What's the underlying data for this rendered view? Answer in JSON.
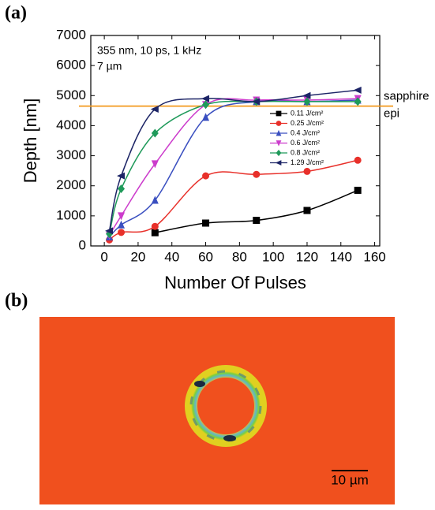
{
  "panel_labels": [
    "(a)",
    "(b)"
  ],
  "chart_data": {
    "type": "line",
    "x_label": "Number Of Pulses",
    "y_label": "Depth [nm]",
    "annotations": [
      "355 nm, 10 ps, 1 kHz",
      "7 µm"
    ],
    "x": [
      3,
      10,
      30,
      60,
      90,
      120,
      150
    ],
    "series": [
      {
        "name": "0.11 J/cm²",
        "color": "#000000",
        "marker": "square",
        "values": [
          null,
          null,
          440,
          760,
          850,
          1180,
          1850
        ]
      },
      {
        "name": "0.25 J/cm²",
        "color": "#e8302a",
        "marker": "circle",
        "values": [
          200,
          450,
          650,
          2330,
          2380,
          2480,
          2850
        ]
      },
      {
        "name": "0.4 J/cm²",
        "color": "#3a4fc0",
        "marker": "triangle-up",
        "values": [
          300,
          700,
          1520,
          4280,
          4800,
          4800,
          4850
        ]
      },
      {
        "name": "0.6 J/cm²",
        "color": "#cc3ccc",
        "marker": "triangle-down",
        "values": [
          350,
          1000,
          2730,
          4700,
          4850,
          4850,
          4900
        ]
      },
      {
        "name": "0.8 J/cm²",
        "color": "#1f9a5a",
        "marker": "diamond",
        "values": [
          400,
          1900,
          3750,
          4700,
          4800,
          4800,
          4800
        ]
      },
      {
        "name": "1.29 J/cm²",
        "color": "#1c2466",
        "marker": "triangle-left",
        "values": [
          500,
          2330,
          4550,
          4900,
          4800,
          5000,
          5180
        ]
      }
    ],
    "reference_line": {
      "value": 4650,
      "color": "#f39a1e",
      "labels": [
        "sapphire",
        "epi"
      ]
    },
    "xlim": [
      -8,
      163
    ],
    "xticks": [
      0,
      20,
      40,
      60,
      80,
      100,
      120,
      140,
      160
    ],
    "ylim": [
      0,
      7000
    ],
    "yticks": [
      0,
      1000,
      2000,
      3000,
      4000,
      5000,
      6000,
      7000
    ]
  },
  "image": {
    "scale_bar": "10 µm"
  }
}
